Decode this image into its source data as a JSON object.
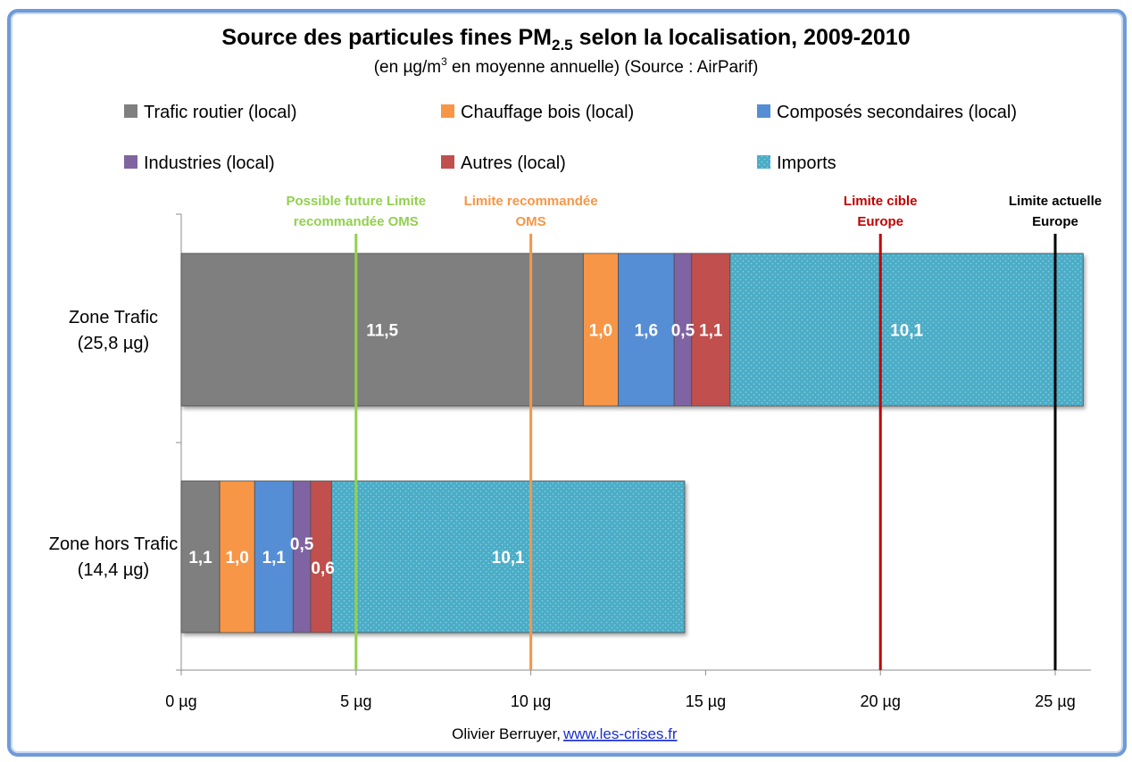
{
  "chart_data": {
    "type": "bar",
    "orientation": "horizontal",
    "stacked": true,
    "title": "Source des particules fines PM",
    "title_sub": "2.5",
    "title_tail": " selon la localisation, 2009-2010",
    "subtitle_pre": "(en µg/m",
    "subtitle_sup": "3",
    "subtitle_post": "  en moyenne annuelle) (Source : AirParif)",
    "categories": [
      "Zone Trafic",
      "Zone hors Trafic"
    ],
    "category_totals": [
      "(25,8 µg)",
      "(14,4 µg)"
    ],
    "series": [
      {
        "name": "Trafic routier (local)",
        "color": "#7f7f7f",
        "values": [
          11.5,
          1.1
        ],
        "labels": [
          "11,5",
          "1,1"
        ]
      },
      {
        "name": "Chauffage bois (local)",
        "color": "#f79646",
        "values": [
          1.0,
          1.0
        ],
        "labels": [
          "1,0",
          "1,0"
        ]
      },
      {
        "name": "Composés secondaires (local)",
        "color": "#558ed5",
        "values": [
          1.6,
          1.1
        ],
        "labels": [
          "1,6",
          "1,1"
        ]
      },
      {
        "name": "Industries (local)",
        "color": "#8064a2",
        "values": [
          0.5,
          0.5
        ],
        "labels": [
          "0,5",
          "0,5"
        ]
      },
      {
        "name": "Autres (local)",
        "color": "#c0504d",
        "values": [
          1.1,
          0.6
        ],
        "labels": [
          "1,1",
          "0,6"
        ]
      },
      {
        "name": "Imports",
        "color": "#4bacc6",
        "pattern": "dotted",
        "values": [
          10.1,
          10.1
        ],
        "labels": [
          "10,1",
          "10,1"
        ]
      }
    ],
    "xlim": [
      0,
      25
    ],
    "xticks": [
      0,
      5,
      10,
      15,
      20,
      25
    ],
    "xtick_labels": [
      "0 µg",
      "5 µg",
      "10 µg",
      "15 µg",
      "20 µg",
      "25 µg"
    ],
    "reference_lines": [
      {
        "x": 5,
        "label": [
          "Possible future Limite",
          "recommandée OMS"
        ],
        "color": "#92d050"
      },
      {
        "x": 10,
        "label": [
          "Limite recommandée",
          "OMS"
        ],
        "color": "#f79646"
      },
      {
        "x": 20,
        "label": [
          "Limite cible",
          "Europe"
        ],
        "color": "#c00000"
      },
      {
        "x": 25,
        "label": [
          "Limite actuelle",
          "Europe"
        ],
        "color": "#000000"
      }
    ],
    "legend_position": "top",
    "grid": false
  },
  "footer": {
    "author": "Olivier Berruyer,",
    "link": "www.les-crises.fr"
  }
}
